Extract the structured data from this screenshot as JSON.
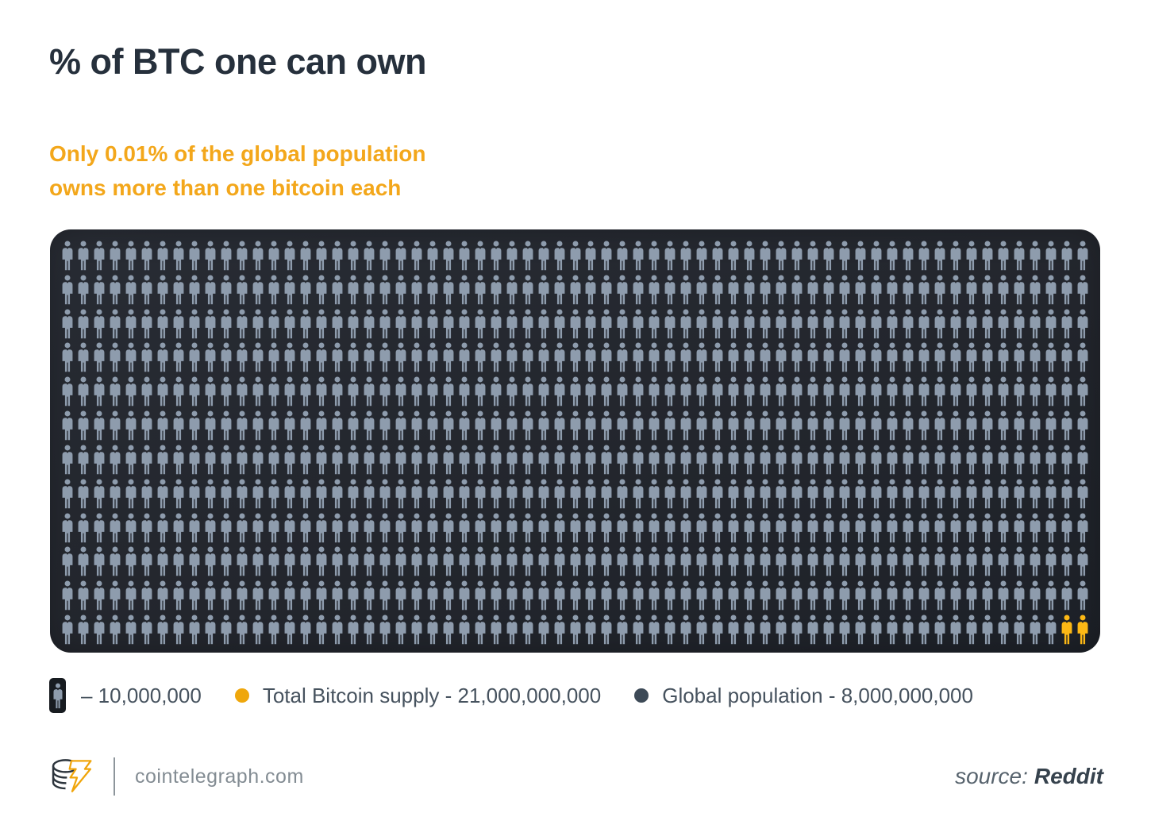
{
  "colors": {
    "title": "#26303c",
    "accent_yellow": "#f3a71b",
    "panel_bg": "#23262d",
    "icon_gray": "#8e9cad",
    "icon_yellow": "#fcb815",
    "legend_text": "#46525e",
    "legend_dot_yellow": "#efa70c",
    "legend_dot_dark": "#3d4a57",
    "footer_text": "#838c93",
    "source_text": "#57636d"
  },
  "header": {
    "title": "% of BTC one can own",
    "subtitle_line1": "Only 0.01% of the global population",
    "subtitle_line2": "owns more than one bitcoin each"
  },
  "chart_data": {
    "type": "pictogram",
    "title": "% of BTC one can own",
    "annotation": "Only 0.01% of the global population owns more than one bitcoin each",
    "icon_value": 10000000,
    "icon_unit_label": "– 10,000,000",
    "grid": {
      "columns": 65,
      "rows": 12,
      "total_icons": 780,
      "gray_icons": 778,
      "yellow_icons": 2,
      "yellow_position": "bottom-right-last-two"
    },
    "series": [
      {
        "name": "Total Bitcoin supply",
        "value": 21000000000,
        "color": "#efa70c"
      },
      {
        "name": "Global population",
        "value": 8000000000,
        "color": "#3d4a57"
      }
    ],
    "legend_position": "bottom",
    "source": "Reddit"
  },
  "legend": {
    "items": [
      {
        "marker": "person-icon",
        "label": "– 10,000,000"
      },
      {
        "marker": "yellow-dot-icon",
        "label": "Total Bitcoin supply - 21,000,000,000"
      },
      {
        "marker": "dark-dot-icon",
        "label": "Global population - 8,000,000,000"
      }
    ]
  },
  "footer": {
    "site": "cointelegraph.com",
    "source_label": "source:",
    "source_value": "Reddit"
  },
  "icons": {
    "person": "person-pictogram",
    "logo": "cointelegraph-coin-stack-lightning"
  }
}
